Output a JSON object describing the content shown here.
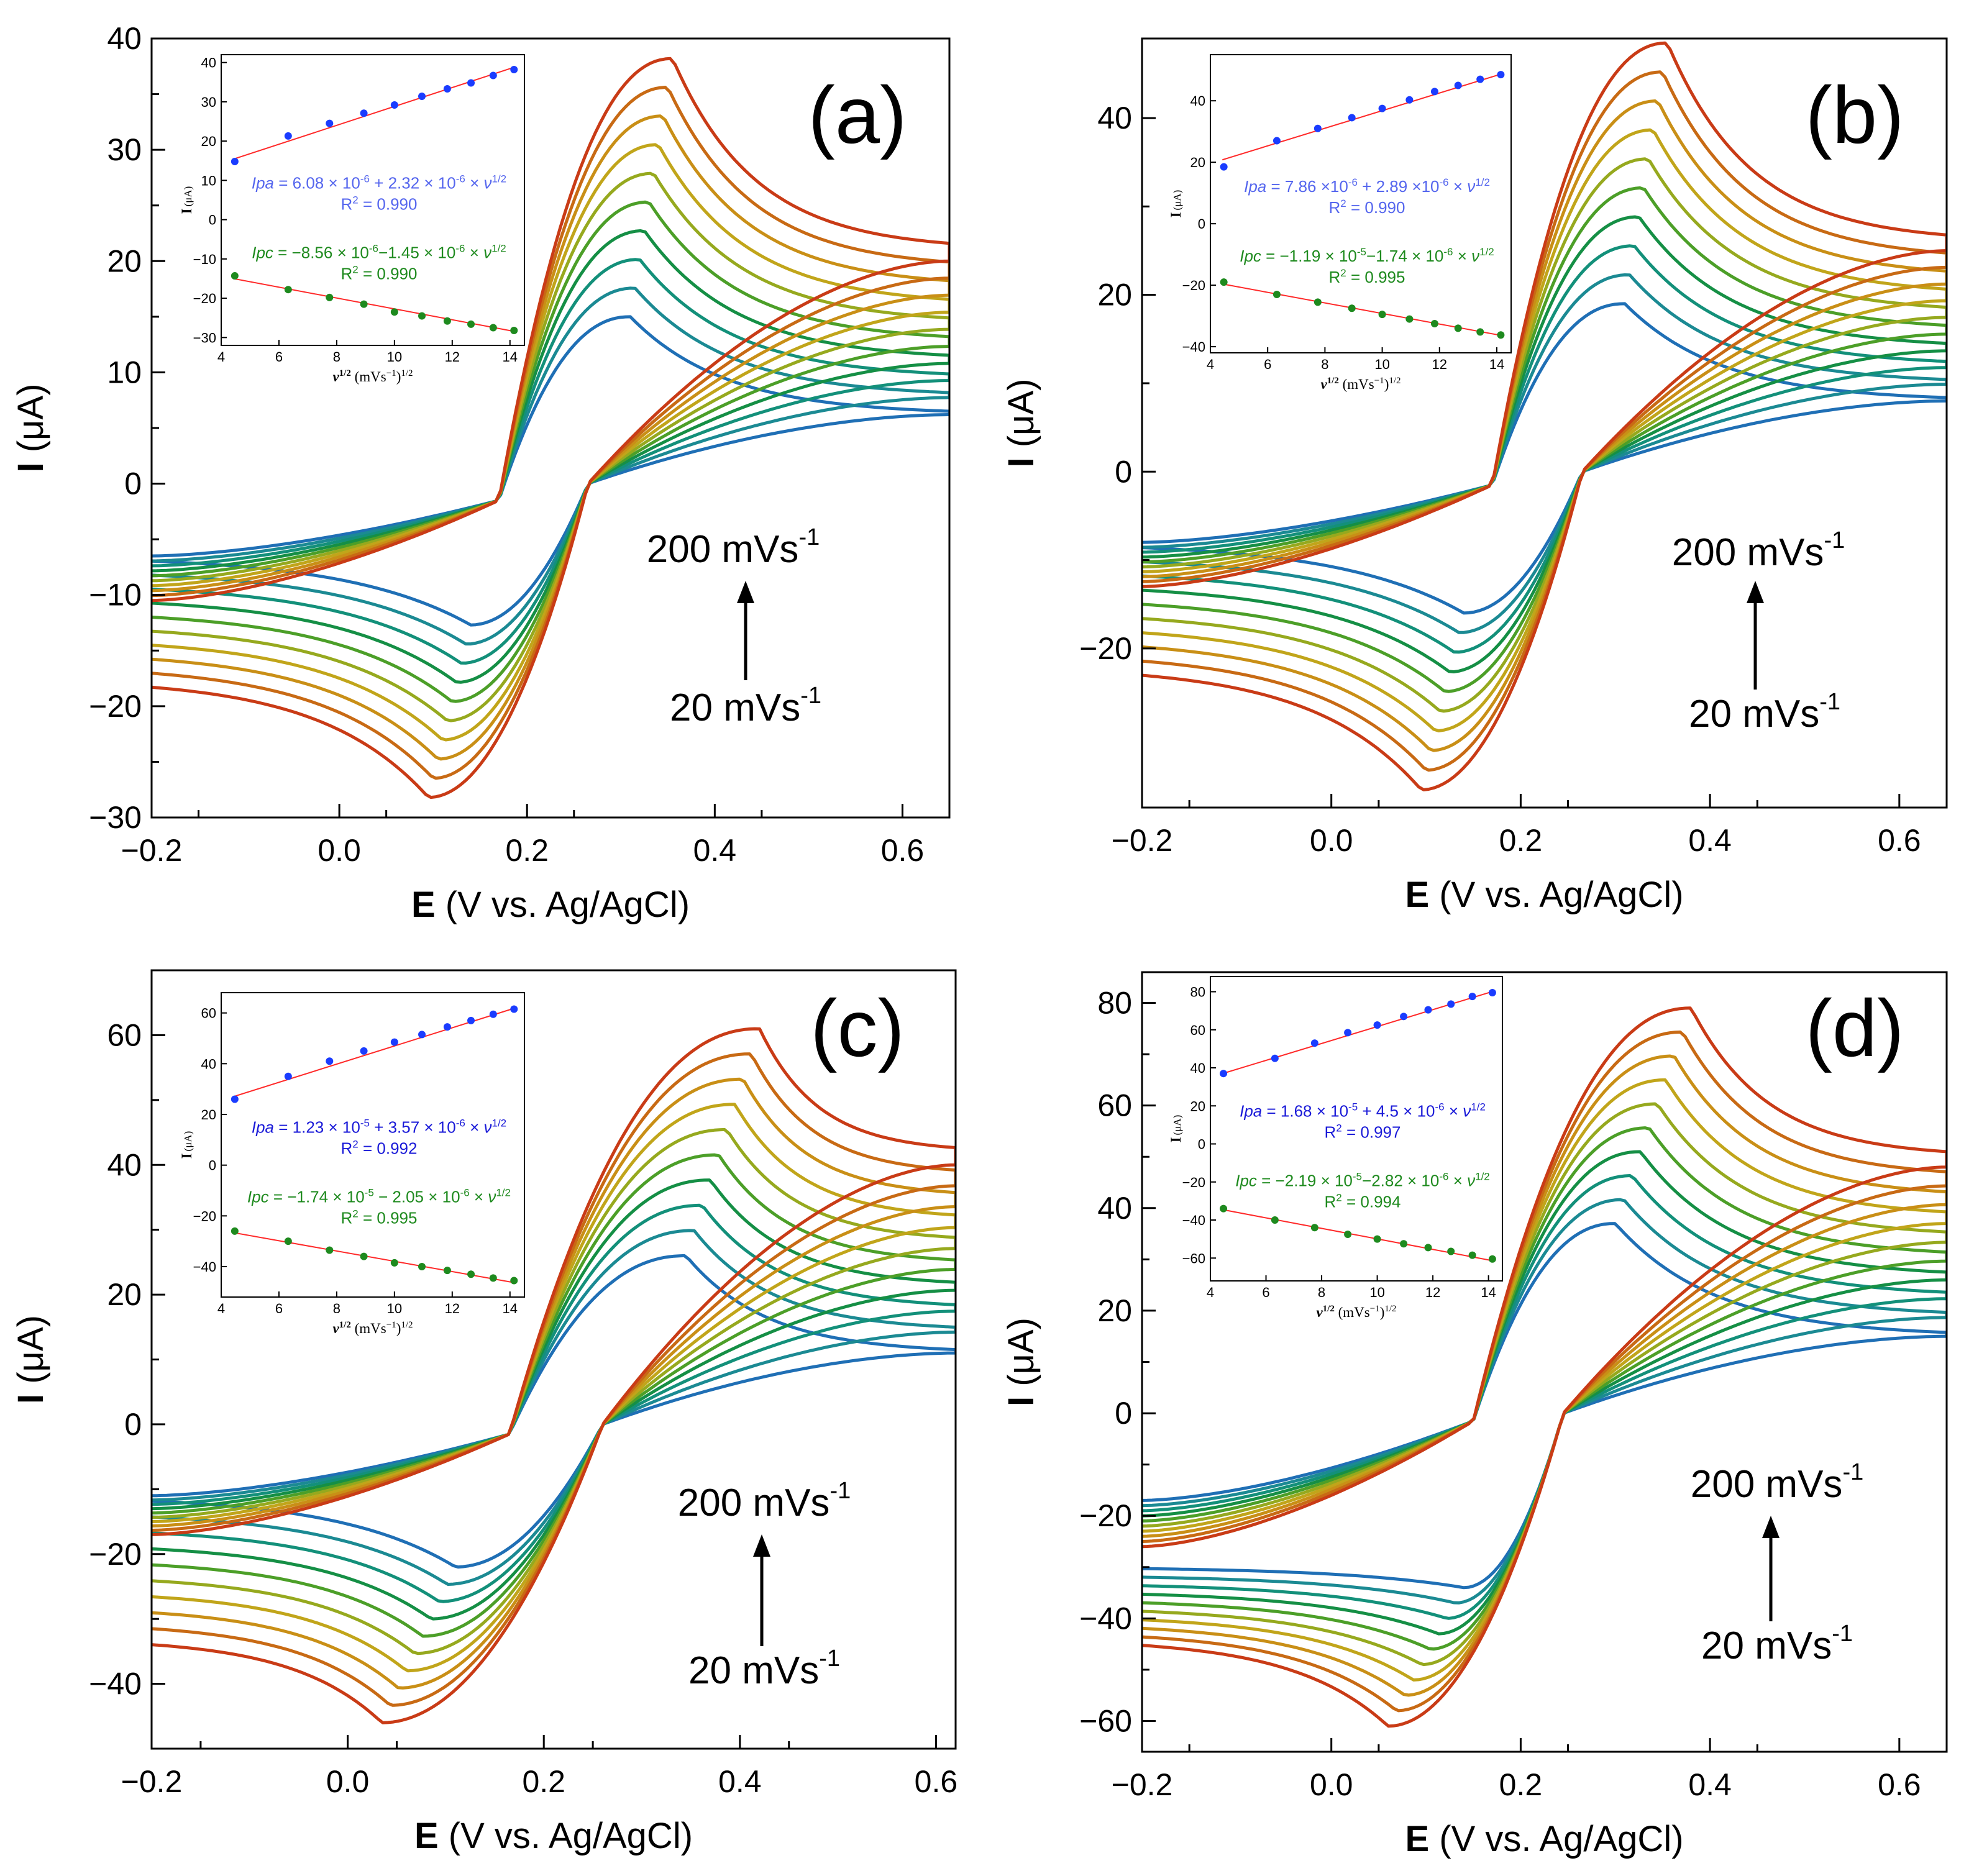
{
  "colors": {
    "cv_curves": [
      "#1f6fb5",
      "#1b8a93",
      "#13907a",
      "#158f45",
      "#4c9f28",
      "#96a91e",
      "#c1a51a",
      "#c98f16",
      "#c86a14",
      "#c93b16",
      "#ad1e4a"
    ],
    "ipa_points": "#1a3cff",
    "ipc_points": "#1e8a1e",
    "fit_line": "#ff2a2a",
    "ipa_text_ab": "#5566ee",
    "ipa_text_cd": "#1a1ad8",
    "ipc_text": "#1e8a1e",
    "arrow": "#000000"
  },
  "chart_data": [
    {
      "type": "line",
      "panel_label": "(a)",
      "xlabel_bold": "E",
      "xlabel_rest": " (V vs. Ag/AgCl)",
      "ylabel_bold": "I",
      "ylabel_rest": " (μA)",
      "xlim": [
        -0.2,
        0.65
      ],
      "ylim": [
        -30,
        40
      ],
      "xticks": [
        "−0.2",
        "0.0",
        "0.2",
        "0.4",
        "0.6"
      ],
      "xtick_values": [
        -0.2,
        0.0,
        0.2,
        0.4,
        0.6
      ],
      "yticks": [
        "−30",
        "−20",
        "−10",
        "0",
        "10",
        "20",
        "30",
        "40"
      ],
      "ytick_values": [
        -30,
        -20,
        -10,
        0,
        10,
        20,
        30,
        40
      ],
      "scan_rate_high": "200 mVs",
      "scan_rate_low": "20 mVs",
      "scan_rate_sup": "-1",
      "series_scan_rates_mVs": [
        20,
        40,
        60,
        80,
        100,
        120,
        140,
        160,
        180,
        200
      ],
      "cv": {
        "e_onset": 0.17,
        "epa": [
          0.31,
          0.355
        ],
        "ipa": [
          15,
          38.2
        ],
        "epc": [
          0.14,
          0.095
        ],
        "ipc": [
          -12.7,
          -28.2
        ],
        "start": [
          -6.5,
          -10.5
        ],
        "start_cath": [
          -6.5,
          -17.5
        ],
        "end_anod": [
          6.2,
          21
        ],
        "end_cath": [
          6.2,
          20
        ],
        "shoulder": 0.44
      },
      "inset": {
        "xlabel": "ν",
        "xlabel_sup": "1/2",
        "xlabel_rest": " (mVs",
        "xlabel_rest_sup": "−1",
        "xlabel_rest_end": ")",
        "xlabel_end_sup": "1/2",
        "ylabel": "I",
        "ylabel_sub": "(μA)",
        "xlim": [
          4,
          14.5
        ],
        "ylim": [
          -32,
          42
        ],
        "xticks": [
          "4",
          "6",
          "8",
          "10",
          "12",
          "14"
        ],
        "xtick_values": [
          4,
          6,
          8,
          10,
          12,
          14
        ],
        "yticks": [
          "−30",
          "−20",
          "−10",
          "0",
          "10",
          "20",
          "30",
          "40"
        ],
        "ytick_values": [
          -30,
          -20,
          -10,
          0,
          10,
          20,
          30,
          40
        ],
        "x": [
          4.47,
          6.32,
          7.75,
          8.94,
          10.0,
          10.95,
          11.83,
          12.65,
          13.42,
          14.14
        ],
        "ipa": [
          14.8,
          21.3,
          24.5,
          27.1,
          29.2,
          31.4,
          33.3,
          34.8,
          36.7,
          38.2
        ],
        "ipc": [
          -14.3,
          -17.8,
          -19.8,
          -21.5,
          -23.5,
          -24.5,
          -25.8,
          -26.6,
          -27.5,
          -28.2
        ],
        "ipa_fit": [
          15.4,
          38.9
        ],
        "ipc_fit": [
          -15.0,
          -28.5
        ],
        "ipa_eq_label": "Ipa",
        "ipa_eq": " = 6.08 × 10",
        "ipa_eq_s1": "-6",
        "ipa_eq_b": " + 2.32 × 10",
        "ipa_eq_s2": "-6",
        "ipa_eq_c": " × ",
        "ipa_eq_nu": "ν",
        "ipa_eq_s3": "1/2",
        "ipa_r2": "R",
        "ipa_r2_sup": "2",
        "ipa_r2_val": " = 0.990",
        "ipc_eq_label": "Ipc",
        "ipc_eq": " = −8.56 × 10",
        "ipc_eq_s1": "-6",
        "ipc_eq_b": "−1.45 × 10",
        "ipc_eq_s2": "-6",
        "ipc_eq_c": " × ",
        "ipc_eq_nu": "ν",
        "ipc_eq_s3": "1/2",
        "ipc_r2": "R",
        "ipc_r2_sup": "2",
        "ipc_r2_val": " = 0.990"
      }
    },
    {
      "type": "line",
      "panel_label": "(b)",
      "xlabel_bold": "E",
      "xlabel_rest": " (V vs. Ag/AgCl)",
      "ylabel_bold": "I",
      "ylabel_rest": " (μA)",
      "xlim": [
        -0.2,
        0.65
      ],
      "ylim": [
        -38,
        49
      ],
      "xticks": [
        "−0.2",
        "0.0",
        "0.2",
        "0.4",
        "0.6"
      ],
      "xtick_values": [
        -0.2,
        0.0,
        0.2,
        0.4,
        0.6
      ],
      "yticks": [
        "−20",
        "0",
        "20",
        "40"
      ],
      "ytick_values": [
        -20,
        0,
        20,
        40
      ],
      "scan_rate_high": "200 mVs",
      "scan_rate_low": "20 mVs",
      "scan_rate_sup": "-1",
      "series_scan_rates_mVs": [
        20,
        40,
        60,
        80,
        100,
        120,
        140,
        160,
        180,
        200
      ],
      "cv": {
        "e_onset": 0.17,
        "epa": [
          0.31,
          0.355
        ],
        "ipa": [
          19,
          48.5
        ],
        "epc": [
          0.14,
          0.095
        ],
        "ipc": [
          -16,
          -36
        ],
        "start": [
          -8,
          -13
        ],
        "start_cath": [
          -8,
          -22
        ],
        "end_anod": [
          8,
          26
        ],
        "end_cath": [
          8,
          25
        ],
        "shoulder": 0.44
      },
      "inset": {
        "xlabel": "ν",
        "xlabel_sup": "1/2",
        "xlabel_rest": " (mVs",
        "xlabel_rest_sup": "−1",
        "xlabel_rest_end": ")",
        "xlabel_end_sup": "1/2",
        "ylabel": "I",
        "ylabel_sub": "(μA)",
        "xlim": [
          4,
          14.5
        ],
        "ylim": [
          -42,
          55
        ],
        "xticks": [
          "4",
          "6",
          "8",
          "10",
          "12",
          "14"
        ],
        "xtick_values": [
          4,
          6,
          8,
          10,
          12,
          14
        ],
        "yticks": [
          "−40",
          "−20",
          "0",
          "20",
          "40"
        ],
        "ytick_values": [
          -40,
          -20,
          0,
          20,
          40
        ],
        "x": [
          4.47,
          6.32,
          7.75,
          8.94,
          10.0,
          10.95,
          11.83,
          12.65,
          13.42,
          14.14
        ],
        "ipa": [
          18.5,
          27.0,
          31.0,
          34.5,
          37.5,
          40.3,
          43.0,
          45.0,
          47.0,
          48.5
        ],
        "ipc": [
          -19.0,
          -23.0,
          -25.5,
          -27.5,
          -29.5,
          -31.0,
          -32.5,
          -34.0,
          -35.2,
          -36.2
        ],
        "ipa_fit": [
          20.8,
          48.8
        ],
        "ipc_fit": [
          -19.6,
          -36.4
        ],
        "ipa_eq_label": "Ipa",
        "ipa_eq": " = 7.86 ×10",
        "ipa_eq_s1": "-6",
        "ipa_eq_b": " + 2.89 ×10",
        "ipa_eq_s2": "-6",
        "ipa_eq_c": " × ",
        "ipa_eq_nu": "ν",
        "ipa_eq_s3": "1/2",
        "ipa_r2": "R",
        "ipa_r2_sup": "2",
        "ipa_r2_val": " = 0.990",
        "ipc_eq_label": "Ipc",
        "ipc_eq": " = −1.19 × 10",
        "ipc_eq_s1": "-5",
        "ipc_eq_b": "−1.74 × 10",
        "ipc_eq_s2": "-6",
        "ipc_eq_c": " × ",
        "ipc_eq_nu": "ν",
        "ipc_eq_s3": "1/2",
        "ipc_r2": "R",
        "ipc_r2_sup": "2",
        "ipc_r2_val": " = 0.995"
      }
    },
    {
      "type": "line",
      "panel_label": "(c)",
      "xlabel_bold": "E",
      "xlabel_rest": " (V vs. Ag/AgCl)",
      "ylabel_bold": "I",
      "ylabel_rest": " (μA)",
      "xlim": [
        -0.2,
        0.62
      ],
      "ylim": [
        -50,
        70
      ],
      "xticks": [
        "−0.2",
        "0.0",
        "0.2",
        "0.4",
        "0.6"
      ],
      "xtick_values": [
        -0.2,
        0.0,
        0.2,
        0.4,
        0.6
      ],
      "yticks": [
        "−40",
        "−20",
        "0",
        "20",
        "40",
        "60"
      ],
      "ytick_values": [
        -40,
        -20,
        0,
        20,
        40,
        60
      ],
      "scan_rate_high": "200 mVs",
      "scan_rate_low": "20 mVs",
      "scan_rate_sup": "-1",
      "series_scan_rates_mVs": [
        20,
        40,
        60,
        80,
        100,
        120,
        140,
        160,
        180,
        200
      ],
      "cv": {
        "e_onset": 0.165,
        "epa": [
          0.345,
          0.42
        ],
        "ipa": [
          26,
          61
        ],
        "epc": [
          0.11,
          0.035
        ],
        "ipc": [
          -22,
          -46
        ],
        "start": [
          -11,
          -17
        ],
        "start_cath": [
          -11,
          -33
        ],
        "end_anod": [
          11,
          42
        ],
        "end_cath": [
          11,
          40
        ],
        "shoulder": 0.99
      },
      "inset": {
        "xlabel": "ν",
        "xlabel_sup": "1/2",
        "xlabel_rest": " (mVs",
        "xlabel_rest_sup": "−1",
        "xlabel_rest_end": ")",
        "xlabel_end_sup": "1/2",
        "ylabel": "I",
        "ylabel_sub": "(μA)",
        "xlim": [
          4,
          14.5
        ],
        "ylim": [
          -52,
          68
        ],
        "xticks": [
          "4",
          "6",
          "8",
          "10",
          "12",
          "14"
        ],
        "xtick_values": [
          4,
          6,
          8,
          10,
          12,
          14
        ],
        "yticks": [
          "−40",
          "−20",
          "0",
          "20",
          "40",
          "60"
        ],
        "ytick_values": [
          -40,
          -20,
          0,
          20,
          40,
          60
        ],
        "x": [
          4.47,
          6.32,
          7.75,
          8.94,
          10.0,
          10.95,
          11.83,
          12.65,
          13.42,
          14.14
        ],
        "ipa": [
          26.0,
          35.0,
          41.0,
          45.0,
          48.5,
          51.5,
          54.5,
          57.0,
          59.5,
          61.5
        ],
        "ipc": [
          -26.0,
          -30.0,
          -33.5,
          -36.0,
          -38.5,
          -40.0,
          -41.5,
          -43.0,
          -44.5,
          -45.5
        ],
        "ipa_fit": [
          27.0,
          62.0
        ],
        "ipc_fit": [
          -26.6,
          -46.4
        ],
        "ipa_eq_label": "Ipa",
        "ipa_eq": " = 1.23 × 10",
        "ipa_eq_s1": "-5",
        "ipa_eq_b": " + 3.57 × 10",
        "ipa_eq_s2": "-6",
        "ipa_eq_c": " × ",
        "ipa_eq_nu": "ν",
        "ipa_eq_s3": "1/2",
        "ipa_r2": "R",
        "ipa_r2_sup": "2",
        "ipa_r2_val": " = 0.992",
        "ipc_eq_label": "Ipc",
        "ipc_eq": " = −1.74 × 10",
        "ipc_eq_s1": "-5",
        "ipc_eq_b": " − 2.05 × 10",
        "ipc_eq_s2": "-6",
        "ipc_eq_c": " × ",
        "ipc_eq_nu": "ν",
        "ipc_eq_s3": "1/2",
        "ipc_r2": "R",
        "ipc_r2_sup": "2",
        "ipc_r2_val": " = 0.995"
      }
    },
    {
      "type": "line",
      "panel_label": "(d)",
      "xlabel_bold": "E",
      "xlabel_rest": " (V vs. Ag/AgCl)",
      "ylabel_bold": "I",
      "ylabel_rest": " (μA)",
      "xlim": [
        -0.2,
        0.65
      ],
      "ylim": [
        -66,
        86
      ],
      "xticks": [
        "−0.2",
        "0.0",
        "0.2",
        "0.4",
        "0.6"
      ],
      "xtick_values": [
        -0.2,
        0.0,
        0.2,
        0.4,
        0.6
      ],
      "yticks": [
        "−60",
        "−40",
        "−20",
        "0",
        "20",
        "40",
        "60",
        "80"
      ],
      "ytick_values": [
        -60,
        -40,
        -20,
        0,
        20,
        40,
        60,
        80
      ],
      "scan_rate_high": "200 mVs",
      "scan_rate_low": "20 mVs",
      "scan_rate_sup": "-1",
      "series_scan_rates_mVs": [
        20,
        40,
        60,
        80,
        100,
        120,
        140,
        160,
        180,
        200
      ],
      "cv": {
        "e_onset": 0.15,
        "epa": [
          0.3,
          0.38
        ],
        "ipa": [
          37,
          79
        ],
        "epc": [
          0.14,
          0.06
        ],
        "ipc": [
          -34,
          -61
        ],
        "start": [
          -17,
          -26
        ],
        "start_cath": [
          -30,
          -44
        ],
        "end_anod": [
          15,
          50
        ],
        "end_cath": [
          15,
          48
        ],
        "shoulder": 0.99
      },
      "inset": {
        "xlabel": "ν",
        "xlabel_sup": "1/2",
        "xlabel_rest": " (mVs",
        "xlabel_rest_sup": "−1",
        "xlabel_rest_end": ")",
        "xlabel_end_sup": "1/2",
        "ylabel": "I",
        "ylabel_sub": "(μA)",
        "xlim": [
          4,
          14.5
        ],
        "ylim": [
          -72,
          88
        ],
        "xticks": [
          "4",
          "6",
          "8",
          "10",
          "12",
          "14"
        ],
        "xtick_values": [
          4,
          6,
          8,
          10,
          12,
          14
        ],
        "yticks": [
          "−60",
          "−40",
          "−20",
          "0",
          "20",
          "40",
          "60",
          "80"
        ],
        "ytick_values": [
          -60,
          -40,
          -20,
          0,
          20,
          40,
          60,
          80
        ],
        "x": [
          4.47,
          6.32,
          7.75,
          8.94,
          10.0,
          10.95,
          11.83,
          12.65,
          13.42,
          14.14
        ],
        "ipa": [
          37.0,
          45.0,
          53.0,
          58.5,
          62.5,
          67.0,
          70.5,
          73.5,
          77.5,
          79.5
        ],
        "ipc": [
          -34.0,
          -40.0,
          -44.0,
          -47.5,
          -50.0,
          -52.5,
          -54.5,
          -56.5,
          -58.5,
          -60.5
        ],
        "ipa_fit": [
          36.9,
          80.3
        ],
        "ipc_fit": [
          -34.5,
          -61.5
        ],
        "ipa_eq_label": "Ipa",
        "ipa_eq": " = 1.68 × 10",
        "ipa_eq_s1": "-5",
        "ipa_eq_b": " + 4.5 × 10",
        "ipa_eq_s2": "-6",
        "ipa_eq_c": " × ",
        "ipa_eq_nu": "ν",
        "ipa_eq_s3": "1/2",
        "ipa_r2": "R",
        "ipa_r2_sup": "2",
        "ipa_r2_val": " = 0.997",
        "ipc_eq_label": "Ipc",
        "ipc_eq": " = −2.19 × 10",
        "ipc_eq_s1": "-5",
        "ipc_eq_b": "−2.82 × 10",
        "ipc_eq_s2": "-6",
        "ipc_eq_c": " × ",
        "ipc_eq_nu": "ν",
        "ipc_eq_s3": "1/2",
        "ipc_r2": "R",
        "ipc_r2_sup": "2",
        "ipc_r2_val": " = 0.994"
      }
    }
  ]
}
